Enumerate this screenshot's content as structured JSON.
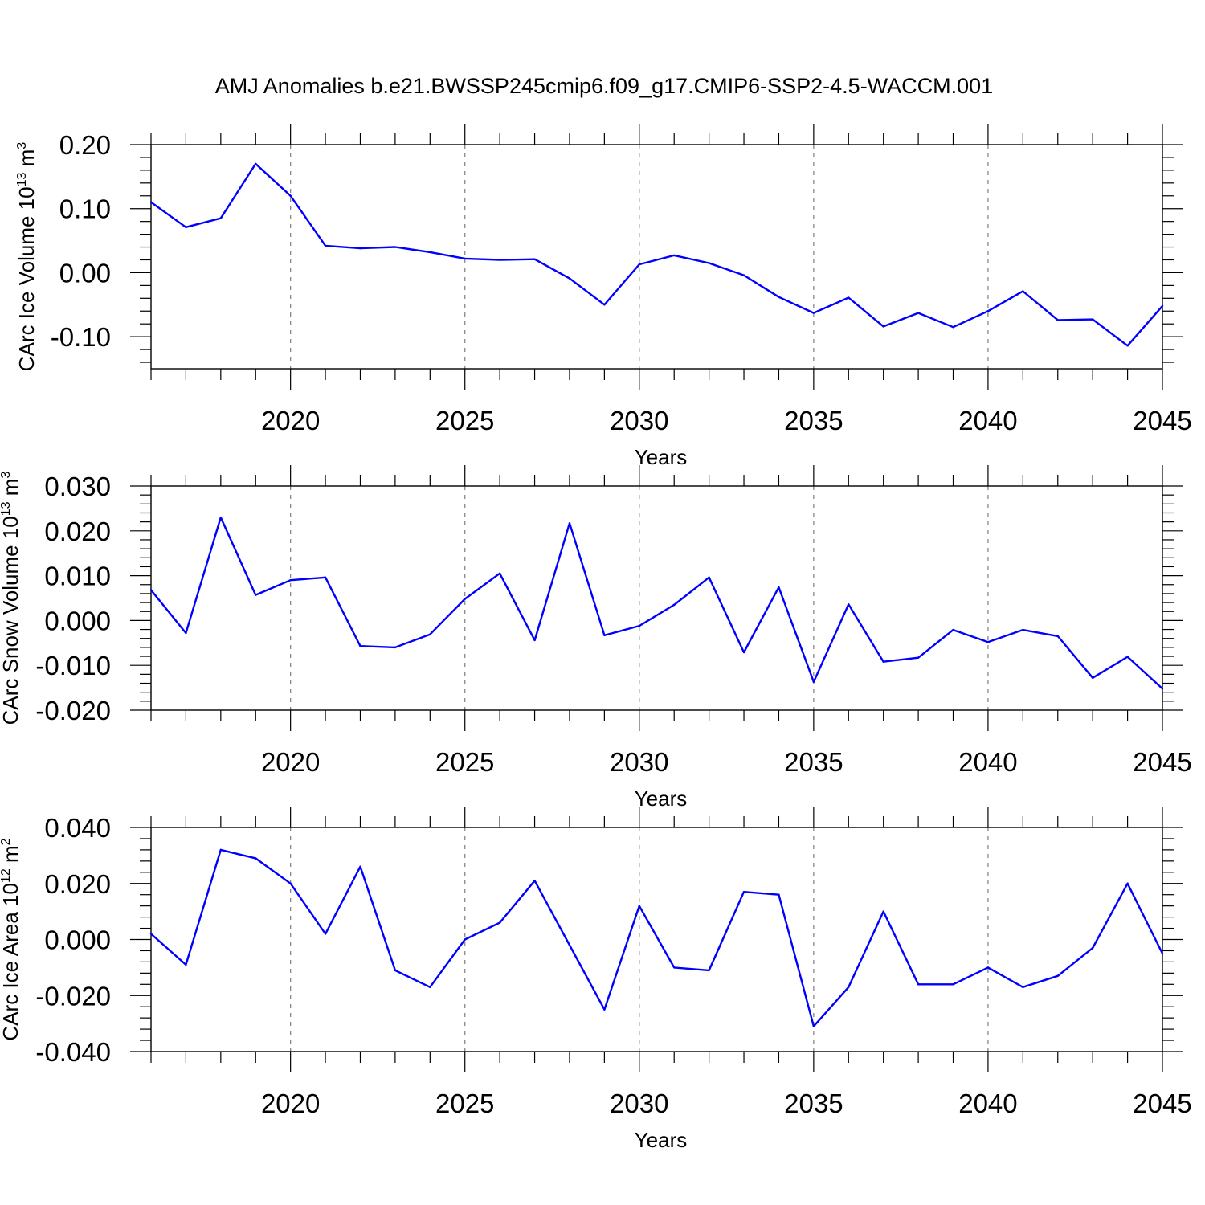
{
  "title": "AMJ Anomalies b.e21.BWSSP245cmip6.f09_g17.CMIP6-SSP2-4.5-WACCM.001",
  "chart_data": [
    {
      "type": "line",
      "ylabel": "CArc Ice Volume 10",
      "ylabel_sup": "13",
      "ylabel_unit": " m",
      "ylabel_unit_sup": "3",
      "xlabel": "Years",
      "xlim": [
        2016,
        2045
      ],
      "ylim": [
        -0.15,
        0.2
      ],
      "yticks": [
        0.2,
        0.1,
        0.0,
        -0.1
      ],
      "ytick_labels": [
        "0.20",
        "0.10",
        "0.00",
        "-0.10"
      ],
      "xticks": [
        2020,
        2025,
        2030,
        2035,
        2040,
        2045
      ],
      "xtick_labels": [
        "2020",
        "2025",
        "2030",
        "2035",
        "2040",
        "2045"
      ],
      "color": "#0000ff",
      "x": [
        2016,
        2017,
        2018,
        2019,
        2020,
        2021,
        2022,
        2023,
        2024,
        2025,
        2026,
        2027,
        2028,
        2029,
        2030,
        2031,
        2032,
        2033,
        2034,
        2035,
        2036,
        2037,
        2038,
        2039,
        2040,
        2041,
        2042,
        2043,
        2044,
        2045
      ],
      "values": [
        0.11,
        0.071,
        0.085,
        0.17,
        0.12,
        0.042,
        0.038,
        0.04,
        0.032,
        0.022,
        0.02,
        0.021,
        -0.009,
        -0.05,
        0.013,
        0.027,
        0.015,
        -0.004,
        -0.038,
        -0.063,
        -0.039,
        -0.084,
        -0.063,
        -0.085,
        -0.06,
        -0.029,
        -0.074,
        -0.073,
        -0.114,
        -0.052
      ]
    },
    {
      "type": "line",
      "ylabel": "CArc Snow Volume 10",
      "ylabel_sup": "13",
      "ylabel_unit": " m",
      "ylabel_unit_sup": "3",
      "xlabel": "Years",
      "xlim": [
        2016,
        2045
      ],
      "ylim": [
        -0.02,
        0.03
      ],
      "yticks": [
        0.03,
        0.02,
        0.01,
        0.0,
        -0.01,
        -0.02
      ],
      "ytick_labels": [
        "0.030",
        "0.020",
        "0.010",
        "0.000",
        "-0.010",
        "-0.020"
      ],
      "xticks": [
        2020,
        2025,
        2030,
        2035,
        2040,
        2045
      ],
      "xtick_labels": [
        "2020",
        "2025",
        "2030",
        "2035",
        "2040",
        "2045"
      ],
      "color": "#0000ff",
      "x": [
        2016,
        2017,
        2018,
        2019,
        2020,
        2021,
        2022,
        2023,
        2024,
        2025,
        2026,
        2027,
        2028,
        2029,
        2030,
        2031,
        2032,
        2033,
        2034,
        2035,
        2036,
        2037,
        2038,
        2039,
        2040,
        2041,
        2042,
        2043,
        2044,
        2045
      ],
      "values": [
        0.0068,
        -0.0028,
        0.023,
        0.0057,
        0.009,
        0.0096,
        -0.0057,
        -0.006,
        -0.0031,
        0.0048,
        0.0105,
        -0.0044,
        0.0217,
        -0.0033,
        -0.0012,
        0.0035,
        0.0096,
        -0.0071,
        0.0074,
        -0.0137,
        0.0036,
        -0.0092,
        -0.0083,
        -0.0021,
        -0.0048,
        -0.0021,
        -0.0035,
        -0.0128,
        -0.0081,
        -0.0152
      ]
    },
    {
      "type": "line",
      "ylabel": "CArc Ice Area 10",
      "ylabel_sup": "12",
      "ylabel_unit": " m",
      "ylabel_unit_sup": "2",
      "xlabel": "Years",
      "xlim": [
        2016,
        2045
      ],
      "ylim": [
        -0.04,
        0.04
      ],
      "yticks": [
        0.04,
        0.02,
        0.0,
        -0.02,
        -0.04
      ],
      "ytick_labels": [
        "0.040",
        "0.020",
        "0.000",
        "-0.020",
        "-0.040"
      ],
      "xticks": [
        2020,
        2025,
        2030,
        2035,
        2040,
        2045
      ],
      "xtick_labels": [
        "2020",
        "2025",
        "2030",
        "2035",
        "2040",
        "2045"
      ],
      "color": "#0000ff",
      "x": [
        2016,
        2017,
        2018,
        2019,
        2020,
        2021,
        2022,
        2023,
        2024,
        2025,
        2026,
        2027,
        2028,
        2029,
        2030,
        2031,
        2032,
        2033,
        2034,
        2035,
        2036,
        2037,
        2038,
        2039,
        2040,
        2041,
        2042,
        2043,
        2044,
        2045
      ],
      "values": [
        0.002,
        -0.009,
        0.032,
        0.029,
        0.02,
        0.002,
        0.026,
        -0.011,
        -0.017,
        0.0,
        0.006,
        0.021,
        -0.002,
        -0.025,
        0.012,
        -0.01,
        -0.011,
        0.017,
        0.016,
        -0.031,
        -0.017,
        0.01,
        -0.016,
        -0.016,
        -0.01,
        -0.017,
        -0.013,
        -0.003,
        0.02,
        -0.005
      ]
    }
  ]
}
